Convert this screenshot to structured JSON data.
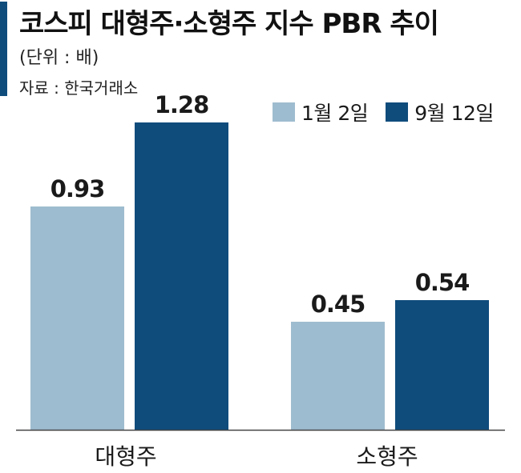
{
  "header": {
    "title": "코스피 대형주·소형주 지수 PBR 추이",
    "unit": "(단위 : 배)",
    "source": "자료 : 한국거래소"
  },
  "colors": {
    "accent": "#0f4c7c",
    "series_1": "#9ebccf",
    "series_2": "#0f4c7c",
    "axis": "#444444"
  },
  "chart_data": {
    "type": "bar",
    "title": "코스피 대형주·소형주 지수 PBR 추이",
    "ylabel": "",
    "xlabel": "",
    "ylim": [
      0,
      1.5
    ],
    "grid": false,
    "legend_position": "top-right",
    "categories": [
      "대형주",
      "소형주"
    ],
    "series": [
      {
        "name": "1월 2일",
        "values": [
          0.93,
          0.45
        ]
      },
      {
        "name": "9월 12일",
        "values": [
          1.28,
          0.54
        ]
      }
    ]
  }
}
